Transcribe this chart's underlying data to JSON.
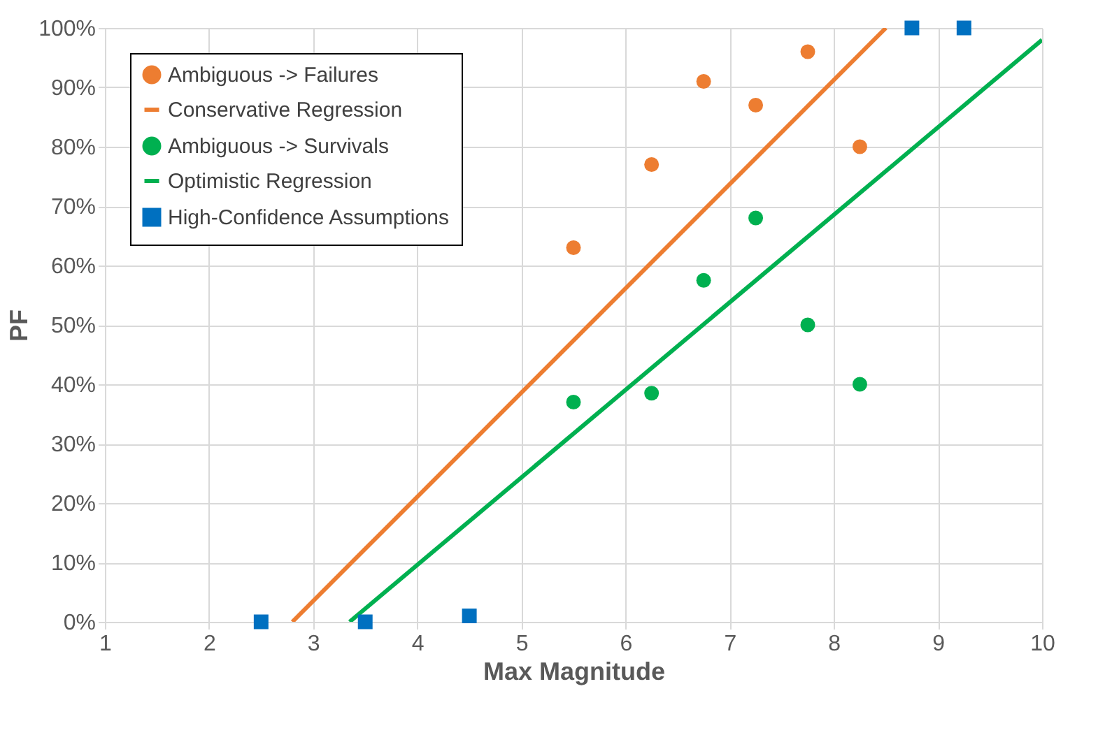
{
  "chart_data": {
    "type": "scatter",
    "xlabel": "Max Magnitude",
    "ylabel": "PF",
    "xlim": [
      1,
      10
    ],
    "xticks": [
      1,
      2,
      3,
      4,
      5,
      6,
      7,
      8,
      9,
      10
    ],
    "ylim": [
      0,
      100
    ],
    "yticks": [
      {
        "value": 0,
        "label": "0%"
      },
      {
        "value": 10,
        "label": "10%"
      },
      {
        "value": 20,
        "label": "20%"
      },
      {
        "value": 30,
        "label": "30%"
      },
      {
        "value": 40,
        "label": "40%"
      },
      {
        "value": 50,
        "label": "50%"
      },
      {
        "value": 60,
        "label": "60%"
      },
      {
        "value": 70,
        "label": "70%"
      },
      {
        "value": 80,
        "label": "80%"
      },
      {
        "value": 90,
        "label": "90%"
      },
      {
        "value": 100,
        "label": "100%"
      }
    ],
    "grid": true,
    "legend": "top left",
    "series": [
      {
        "name": "Ambiguous -> Failures",
        "marker": "circle",
        "color": "#ed7d31",
        "x": [
          5.5,
          6.25,
          6.75,
          7.25,
          7.75,
          8.25
        ],
        "values": [
          63,
          77,
          91,
          87,
          96,
          80
        ]
      },
      {
        "name": "Conservative Regression",
        "type": "line",
        "color": "#ed7d31",
        "x": [
          2.8,
          8.5
        ],
        "values": [
          0,
          100
        ]
      },
      {
        "name": "Ambiguous -> Survivals",
        "marker": "circle",
        "color": "#00b050",
        "x": [
          5.5,
          6.25,
          6.75,
          7.25,
          7.75,
          8.25
        ],
        "values": [
          37,
          38.5,
          57.5,
          68,
          50,
          40
        ]
      },
      {
        "name": "Optimistic Regression",
        "type": "line",
        "color": "#00b050",
        "x": [
          3.35,
          10
        ],
        "values": [
          0,
          98
        ]
      },
      {
        "name": "High-Confidence Assumptions",
        "marker": "square",
        "color": "#0070c0",
        "x": [
          2.5,
          3.5,
          4.5,
          8.75,
          9.25
        ],
        "values": [
          0,
          0,
          1,
          100,
          100
        ]
      }
    ]
  }
}
